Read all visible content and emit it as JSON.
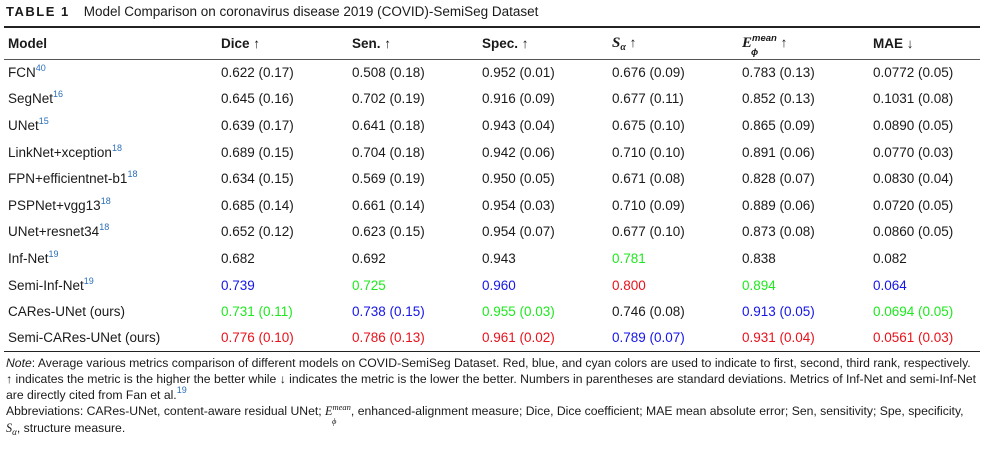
{
  "caption": {
    "label": "TABLE 1",
    "title": "Model Comparison on coronavirus disease 2019 (COVID)-SemiSeg Dataset"
  },
  "headers": {
    "model": "Model",
    "dice": "Dice",
    "sen": "Sen.",
    "spec": "Spec.",
    "s_alpha_base": "S",
    "s_alpha_sub": "α",
    "e_base": "E",
    "e_sup": "mean",
    "e_sub": "ϕ",
    "mae": "MAE",
    "up_arrow": "↑",
    "down_arrow": "↓"
  },
  "rows": [
    {
      "model": "FCN",
      "ref": "40",
      "dice": "0.622 (0.17)",
      "sen": "0.508 (0.18)",
      "spec": "0.952 (0.01)",
      "sa": "0.676 (0.09)",
      "em": "0.783 (0.13)",
      "mae": "0.0772 (0.05)"
    },
    {
      "model": "SegNet",
      "ref": "16",
      "dice": "0.645 (0.16)",
      "sen": "0.702 (0.19)",
      "spec": "0.916 (0.09)",
      "sa": "0.677 (0.11)",
      "em": "0.852 (0.13)",
      "mae": "0.1031 (0.08)"
    },
    {
      "model": "UNet",
      "ref": "15",
      "dice": "0.639 (0.17)",
      "sen": "0.641 (0.18)",
      "spec": "0.943 (0.04)",
      "sa": "0.675 (0.10)",
      "em": "0.865 (0.09)",
      "mae": "0.0890 (0.05)"
    },
    {
      "model": "LinkNet+xception",
      "ref": "18",
      "dice": "0.689 (0.15)",
      "sen": "0.704 (0.18)",
      "spec": "0.942 (0.06)",
      "sa": "0.710 (0.10)",
      "em": "0.891 (0.06)",
      "mae": "0.0770 (0.03)"
    },
    {
      "model": "FPN+efficientnet-b1",
      "ref": "18",
      "dice": "0.634 (0.15)",
      "sen": "0.569 (0.19)",
      "spec": "0.950 (0.05)",
      "sa": "0.671 (0.08)",
      "em": "0.828 (0.07)",
      "mae": "0.0830 (0.04)"
    },
    {
      "model": "PSPNet+vgg13",
      "ref": "18",
      "dice": "0.685 (0.14)",
      "sen": "0.661 (0.14)",
      "spec": "0.954 (0.03)",
      "sa": "0.710 (0.09)",
      "em": "0.889 (0.06)",
      "mae": "0.0720 (0.05)"
    },
    {
      "model": "UNet+resnet34",
      "ref": "18",
      "dice": "0.652 (0.12)",
      "sen": "0.623 (0.15)",
      "spec": "0.954 (0.07)",
      "sa": "0.677 (0.10)",
      "em": "0.873 (0.08)",
      "mae": "0.0860 (0.05)"
    },
    {
      "model": "Inf-Net",
      "ref": "19",
      "dice": "0.682",
      "sen": "0.692",
      "spec": "0.943",
      "sa": "0.781",
      "em": "0.838",
      "mae": "0.082"
    },
    {
      "model": "Semi-Inf-Net",
      "ref": "19",
      "dice": "0.739",
      "sen": "0.725",
      "spec": "0.960",
      "sa": "0.800",
      "em": "0.894",
      "mae": "0.064"
    },
    {
      "model": "CARes-UNet (ours)",
      "ref": "",
      "dice": "0.731 (0.11)",
      "sen": "0.738 (0.15)",
      "spec": "0.955 (0.03)",
      "sa": "0.746 (0.08)",
      "em": "0.913 (0.05)",
      "mae": "0.0694 (0.05)"
    },
    {
      "model": "Semi-CARes-UNet (ours)",
      "ref": "",
      "dice": "0.776 (0.10)",
      "sen": "0.786 (0.13)",
      "spec": "0.961 (0.02)",
      "sa": "0.789 (0.07)",
      "em": "0.931 (0.04)",
      "mae": "0.0561 (0.03)"
    }
  ],
  "highlight_colors": {
    "red": "#e8121b",
    "blue": "#1515e8",
    "green": "#1ee81e"
  },
  "notes": {
    "note_label": "Note",
    "note_text": ": Average various metrics comparison of different models on COVID-SemiSeg Dataset. Red, blue, and cyan colors are used to indicate to first, second, third rank, respectively. ↑ indicates the metric is the higher the better while ↓ indicates the metric is the lower the better. Numbers in parentheses are standard deviations. Metrics of Inf-Net and semi-Inf-Net are directly cited from Fan et al.",
    "note_ref": "19",
    "abbr_pre": "Abbreviations: CARes-UNet, content-aware residual UNet; ",
    "abbr_e_base": "E",
    "abbr_e_sup": "mean",
    "abbr_e_sub": "ϕ",
    "abbr_mid": ", enhanced-alignment measure; Dice, Dice coefficient; MAE mean absolute error; Sen, sensitivity; Spe, specificity, ",
    "abbr_s_base": "S",
    "abbr_s_sub": "α",
    "abbr_post": ", structure measure."
  }
}
